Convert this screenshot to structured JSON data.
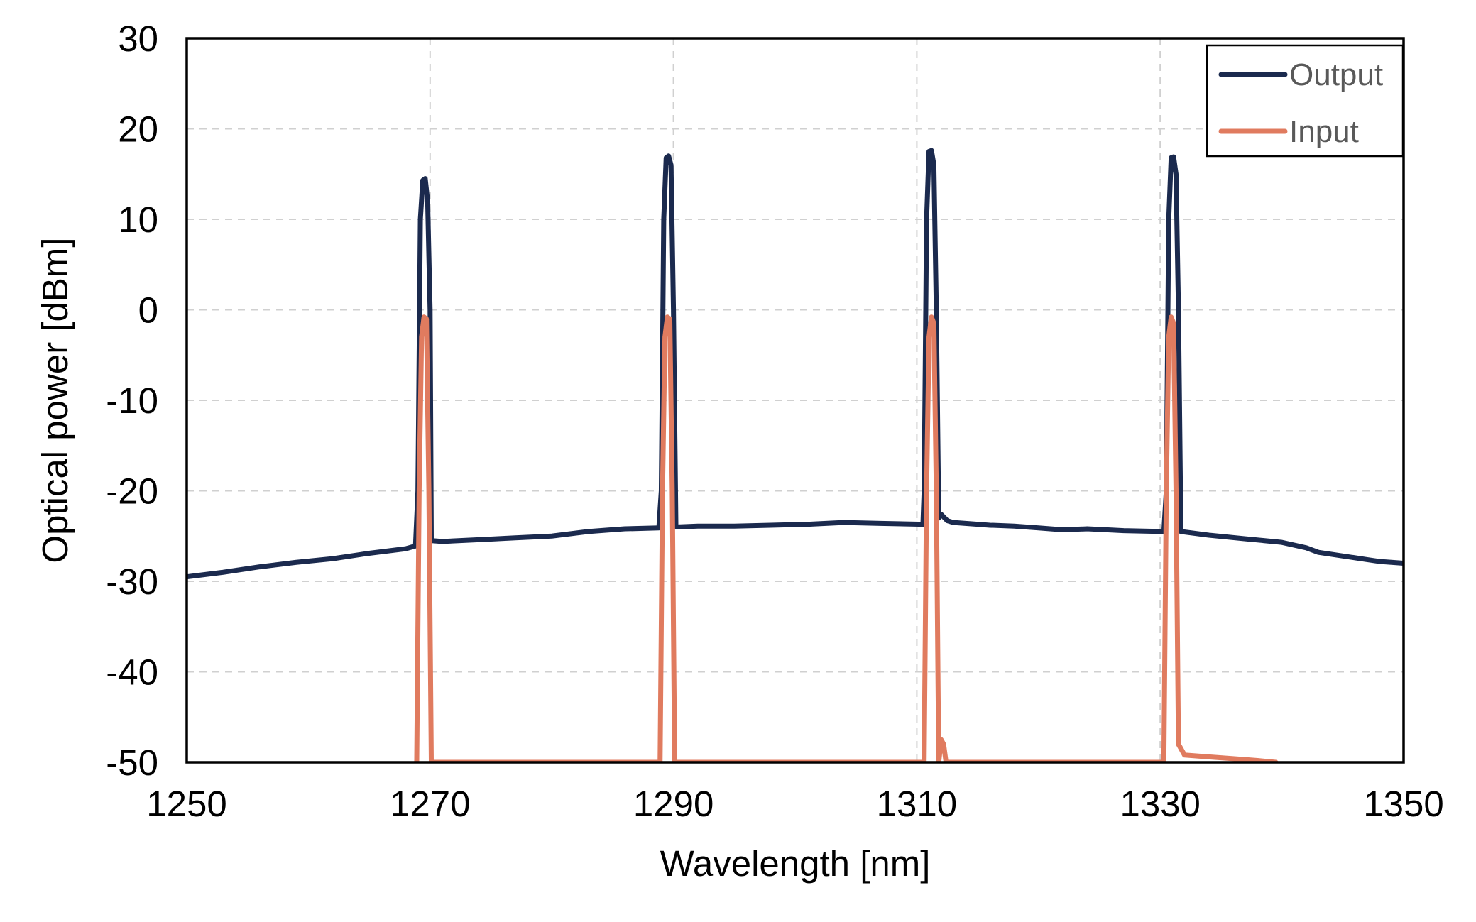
{
  "chart_data": {
    "type": "line",
    "title": "",
    "xlabel": "Wavelength [nm]",
    "ylabel": "Optical power [dBm]",
    "xlim": [
      1250,
      1350
    ],
    "ylim": [
      -50,
      30
    ],
    "x_ticks": [
      1250,
      1270,
      1290,
      1310,
      1330,
      1350
    ],
    "y_ticks": [
      30,
      20,
      10,
      0,
      -10,
      -20,
      -30,
      -40,
      -50
    ],
    "x_tick_labels": [
      "1250",
      "1270",
      "1290",
      "1310",
      "1330",
      "1350"
    ],
    "y_tick_labels": [
      "30",
      "20",
      "10",
      "0",
      "-10",
      "-20",
      "-30",
      "-40",
      "-50"
    ],
    "grid": "dashed",
    "legend_position": "top-right",
    "series": [
      {
        "name": "Output",
        "color": "#1b2a4e",
        "points": [
          [
            1250,
            -29.5
          ],
          [
            1253,
            -29.0
          ],
          [
            1256,
            -28.4
          ],
          [
            1259,
            -27.9
          ],
          [
            1262,
            -27.5
          ],
          [
            1265,
            -26.9
          ],
          [
            1268,
            -26.4
          ],
          [
            1268.8,
            -26.1
          ],
          [
            1269.0,
            -20.0
          ],
          [
            1269.2,
            10.0
          ],
          [
            1269.4,
            14.3
          ],
          [
            1269.6,
            14.5
          ],
          [
            1269.8,
            12.0
          ],
          [
            1270.0,
            0.0
          ],
          [
            1270.1,
            -25.5
          ],
          [
            1271,
            -25.6
          ],
          [
            1274,
            -25.4
          ],
          [
            1277,
            -25.2
          ],
          [
            1280,
            -25.0
          ],
          [
            1283,
            -24.5
          ],
          [
            1286,
            -24.2
          ],
          [
            1288.8,
            -24.1
          ],
          [
            1289.0,
            -20.0
          ],
          [
            1289.2,
            10.0
          ],
          [
            1289.4,
            16.8
          ],
          [
            1289.6,
            17.0
          ],
          [
            1289.8,
            16.0
          ],
          [
            1290.0,
            0.0
          ],
          [
            1290.2,
            -24.0
          ],
          [
            1292,
            -23.9
          ],
          [
            1295,
            -23.9
          ],
          [
            1298,
            -23.8
          ],
          [
            1301,
            -23.7
          ],
          [
            1304,
            -23.5
          ],
          [
            1307,
            -23.6
          ],
          [
            1310.5,
            -23.7
          ],
          [
            1310.6,
            -20.0
          ],
          [
            1310.8,
            10.0
          ],
          [
            1311.0,
            17.5
          ],
          [
            1311.2,
            17.6
          ],
          [
            1311.4,
            16.0
          ],
          [
            1311.6,
            0.0
          ],
          [
            1311.8,
            -23.0
          ],
          [
            1312,
            -22.6
          ],
          [
            1312.5,
            -23.3
          ],
          [
            1313,
            -23.5
          ],
          [
            1314,
            -23.6
          ],
          [
            1315,
            -23.7
          ],
          [
            1316,
            -23.8
          ],
          [
            1318,
            -23.9
          ],
          [
            1320,
            -24.1
          ],
          [
            1322,
            -24.3
          ],
          [
            1324,
            -24.2
          ],
          [
            1327,
            -24.4
          ],
          [
            1330.3,
            -24.5
          ],
          [
            1330.5,
            -20.0
          ],
          [
            1330.7,
            10.0
          ],
          [
            1330.9,
            16.8
          ],
          [
            1331.1,
            16.9
          ],
          [
            1331.3,
            15.0
          ],
          [
            1331.5,
            0.0
          ],
          [
            1331.7,
            -24.5
          ],
          [
            1334,
            -24.9
          ],
          [
            1337,
            -25.3
          ],
          [
            1340,
            -25.7
          ],
          [
            1342,
            -26.3
          ],
          [
            1343,
            -26.8
          ],
          [
            1345,
            -27.2
          ],
          [
            1347,
            -27.6
          ],
          [
            1348,
            -27.8
          ],
          [
            1350,
            -28.0
          ]
        ]
      },
      {
        "name": "Input",
        "color": "#e07b5f",
        "points": [
          [
            1268.9,
            -50.0
          ],
          [
            1269.1,
            -20.0
          ],
          [
            1269.3,
            -3.0
          ],
          [
            1269.5,
            -0.8
          ],
          [
            1269.7,
            -1.0
          ],
          [
            1269.9,
            -20.0
          ],
          [
            1270.1,
            -50.0
          ],
          [
            1288.9,
            -50.0
          ],
          [
            1289.1,
            -20.0
          ],
          [
            1289.3,
            -3.0
          ],
          [
            1289.5,
            -0.8
          ],
          [
            1289.7,
            -1.0
          ],
          [
            1289.9,
            -20.0
          ],
          [
            1290.1,
            -50.0
          ],
          [
            1310.6,
            -50.0
          ],
          [
            1310.8,
            -20.0
          ],
          [
            1311.0,
            -3.0
          ],
          [
            1311.2,
            -0.8
          ],
          [
            1311.4,
            -1.5
          ],
          [
            1311.6,
            -20.0
          ],
          [
            1311.8,
            -50.0
          ],
          [
            1312.0,
            -47.5
          ],
          [
            1312.2,
            -48.0
          ],
          [
            1312.4,
            -50.0
          ],
          [
            1312.8,
            -50.0
          ],
          [
            1330.3,
            -50.0
          ],
          [
            1330.5,
            -20.0
          ],
          [
            1330.7,
            -3.0
          ],
          [
            1330.9,
            -0.8
          ],
          [
            1331.1,
            -1.5
          ],
          [
            1331.3,
            -20.0
          ],
          [
            1331.5,
            -48.0
          ],
          [
            1332,
            -49.2
          ],
          [
            1334,
            -49.4
          ],
          [
            1336,
            -49.6
          ],
          [
            1338,
            -49.8
          ],
          [
            1339.5,
            -50.0
          ]
        ]
      }
    ]
  }
}
